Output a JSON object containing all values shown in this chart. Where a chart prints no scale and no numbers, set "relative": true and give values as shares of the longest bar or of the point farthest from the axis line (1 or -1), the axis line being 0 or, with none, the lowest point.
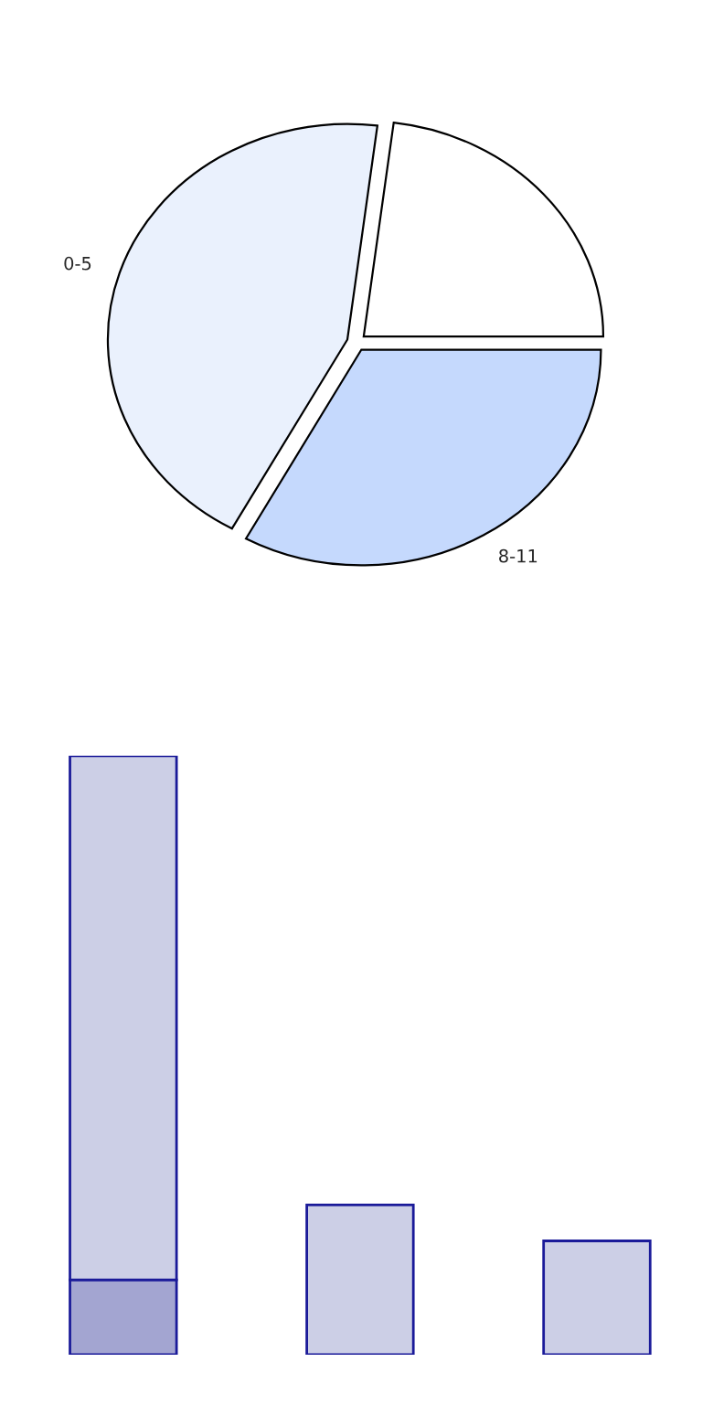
{
  "chart_data": [
    {
      "type": "pie",
      "categories": [
        null,
        "0-5",
        "8-11"
      ],
      "values": [
        23,
        44,
        33
      ],
      "colors": [
        "#ffffff",
        "#eaf1fd",
        "#c5d9fd"
      ]
    },
    {
      "type": "bar",
      "relative": true,
      "stacked": true,
      "categories": [
        null,
        null,
        null
      ],
      "series": [
        {
          "color": "#a3a5d1",
          "values": [
            0.125,
            null,
            null
          ]
        },
        {
          "color": "#cccfe6",
          "values": [
            0.875,
            0.25,
            0.19
          ]
        }
      ]
    }
  ]
}
